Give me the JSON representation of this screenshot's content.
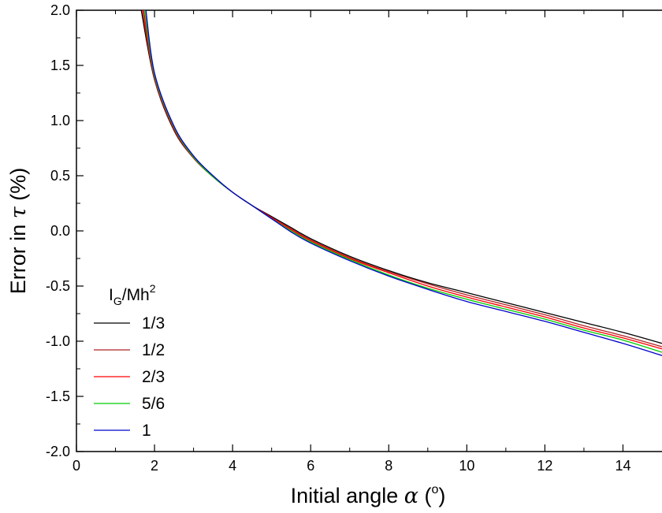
{
  "chart_data": {
    "type": "line",
    "xlabel": {
      "prefix": "Initial angle ",
      "symbol": "α",
      "open": " (",
      "sup": "o",
      "close": ")"
    },
    "ylabel": {
      "prefix": "Error in ",
      "symbol": "τ",
      "suffix": " (%)"
    },
    "xlim": [
      0,
      15
    ],
    "ylim": [
      -2.0,
      2.0
    ],
    "x_ticks": [
      0,
      2,
      4,
      6,
      8,
      10,
      12,
      14
    ],
    "x_tick_labels": [
      "0",
      "2",
      "4",
      "6",
      "8",
      "10",
      "12",
      "14"
    ],
    "y_ticks": [
      2.0,
      1.5,
      1.0,
      0.5,
      0.0,
      -0.5,
      -1.0,
      -1.5,
      -2.0
    ],
    "y_tick_labels": [
      "2.0",
      "1.5",
      "1.0",
      "0.5",
      "0.0",
      "-0.5",
      "-1.0",
      "-1.5",
      "-2.0"
    ],
    "grid": false,
    "legend": {
      "position": "bottom-left",
      "title": {
        "base": "I",
        "sub": "G",
        "mid": "/Mh",
        "sup": "2"
      }
    },
    "series": [
      {
        "name": "1/3",
        "color": "#000000",
        "x": [
          1.66,
          2,
          2.5,
          3,
          3.5,
          4,
          4.5,
          5,
          5.5,
          6,
          7,
          8,
          9,
          10,
          11,
          12,
          13,
          14,
          15
        ],
        "y": [
          2.0,
          1.37,
          0.91,
          0.66,
          0.49,
          0.35,
          0.23,
          0.13,
          0.03,
          -0.07,
          -0.23,
          -0.36,
          -0.47,
          -0.56,
          -0.65,
          -0.74,
          -0.83,
          -0.92,
          -1.02
        ]
      },
      {
        "name": "1/2",
        "color": "#b22222",
        "x": [
          1.69,
          2,
          2.5,
          3,
          3.5,
          4,
          4.5,
          5,
          5.5,
          6,
          7,
          8,
          9,
          10,
          11,
          12,
          13,
          14,
          15
        ],
        "y": [
          2.0,
          1.38,
          0.92,
          0.66,
          0.49,
          0.35,
          0.23,
          0.12,
          0.02,
          -0.08,
          -0.24,
          -0.37,
          -0.48,
          -0.58,
          -0.67,
          -0.76,
          -0.86,
          -0.95,
          -1.05
        ]
      },
      {
        "name": "2/3",
        "color": "#ff0000",
        "x": [
          1.72,
          2,
          2.5,
          3,
          3.5,
          4,
          4.5,
          5,
          5.5,
          6,
          7,
          8,
          9,
          10,
          11,
          12,
          13,
          14,
          15
        ],
        "y": [
          2.0,
          1.4,
          0.93,
          0.67,
          0.49,
          0.35,
          0.23,
          0.12,
          0.01,
          -0.09,
          -0.25,
          -0.38,
          -0.5,
          -0.6,
          -0.69,
          -0.78,
          -0.88,
          -0.97,
          -1.07
        ]
      },
      {
        "name": "5/6",
        "color": "#00cc00",
        "x": [
          1.75,
          2,
          2.5,
          3,
          3.5,
          4,
          4.5,
          5,
          5.5,
          6,
          7,
          8,
          9,
          10,
          11,
          12,
          13,
          14,
          15
        ],
        "y": [
          2.0,
          1.41,
          0.94,
          0.67,
          0.49,
          0.35,
          0.23,
          0.11,
          0.0,
          -0.1,
          -0.26,
          -0.4,
          -0.52,
          -0.62,
          -0.71,
          -0.8,
          -0.9,
          -0.99,
          -1.1
        ]
      },
      {
        "name": "1",
        "color": "#0000cc",
        "x": [
          1.78,
          2,
          2.5,
          3,
          3.5,
          4,
          4.5,
          5,
          5.5,
          6,
          7,
          8,
          9,
          10,
          11,
          12,
          13,
          14,
          15
        ],
        "y": [
          2.0,
          1.43,
          0.95,
          0.68,
          0.5,
          0.35,
          0.23,
          0.11,
          -0.01,
          -0.11,
          -0.27,
          -0.41,
          -0.53,
          -0.64,
          -0.73,
          -0.82,
          -0.92,
          -1.02,
          -1.13
        ]
      }
    ]
  }
}
